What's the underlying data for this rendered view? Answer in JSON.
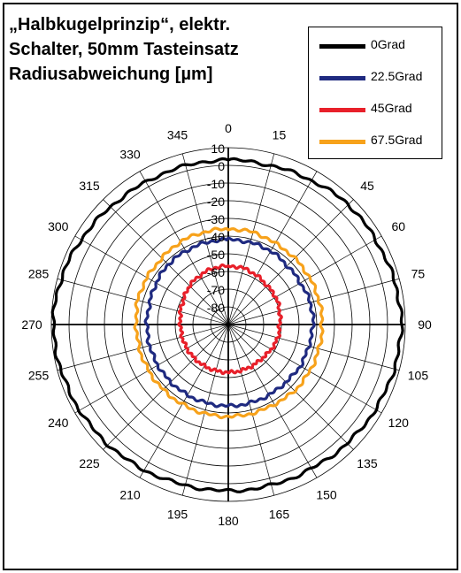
{
  "chart_data": {
    "type": "polar-line",
    "title_lines": [
      "„Halbkugelprinzip“, elektr.",
      "Schalter, 50mm Tasteinsatz",
      "Radiusabweichung [µm]"
    ],
    "angle_labels": [
      "0",
      "15",
      "30",
      "45",
      "60",
      "75",
      "90",
      "105",
      "120",
      "135",
      "150",
      "165",
      "180",
      "195",
      "210",
      "225",
      "240",
      "255",
      "270",
      "285",
      "300",
      "315",
      "330",
      "345"
    ],
    "angles_deg": [
      0,
      15,
      30,
      45,
      60,
      75,
      90,
      105,
      120,
      135,
      150,
      165,
      180,
      195,
      210,
      225,
      240,
      255,
      270,
      285,
      300,
      315,
      330,
      345
    ],
    "radial_labels": [
      "10",
      "0",
      "-10",
      "-20",
      "-30",
      "-40",
      "-50",
      "-60",
      "-70",
      "-80"
    ],
    "rlim": [
      -90,
      10
    ],
    "grid": true,
    "legend_position": "top-right",
    "series": [
      {
        "name": "0Grad",
        "color": "#000000",
        "values": [
          3,
          3,
          4,
          6,
          6,
          7,
          8,
          7,
          6,
          5,
          4,
          4,
          4,
          4,
          5,
          6,
          7,
          8,
          9,
          8,
          6,
          4,
          3,
          3
        ]
      },
      {
        "name": "22.5Grad",
        "color": "#1f2a80",
        "values": [
          -42,
          -42,
          -42,
          -43,
          -43,
          -42,
          -42,
          -43,
          -43,
          -44,
          -44,
          -44,
          -44,
          -44,
          -44,
          -44,
          -44,
          -44,
          -44,
          -44,
          -43,
          -42,
          -42,
          -42
        ]
      },
      {
        "name": "45Grad",
        "color": "#e8202a",
        "values": [
          -57,
          -57,
          -58,
          -59,
          -59,
          -60,
          -61,
          -61,
          -62,
          -63,
          -63,
          -63,
          -63,
          -63,
          -63,
          -63,
          -63,
          -63,
          -63,
          -62,
          -61,
          -59,
          -58,
          -57
        ]
      },
      {
        "name": "67.5Grad",
        "color": "#f7a21b",
        "values": [
          -36,
          -36,
          -37,
          -37,
          -37,
          -37,
          -37,
          -37,
          -37,
          -37,
          -38,
          -38,
          -38,
          -38,
          -38,
          -38,
          -38,
          -38,
          -38,
          -37,
          -37,
          -37,
          -36,
          -36
        ]
      }
    ]
  }
}
